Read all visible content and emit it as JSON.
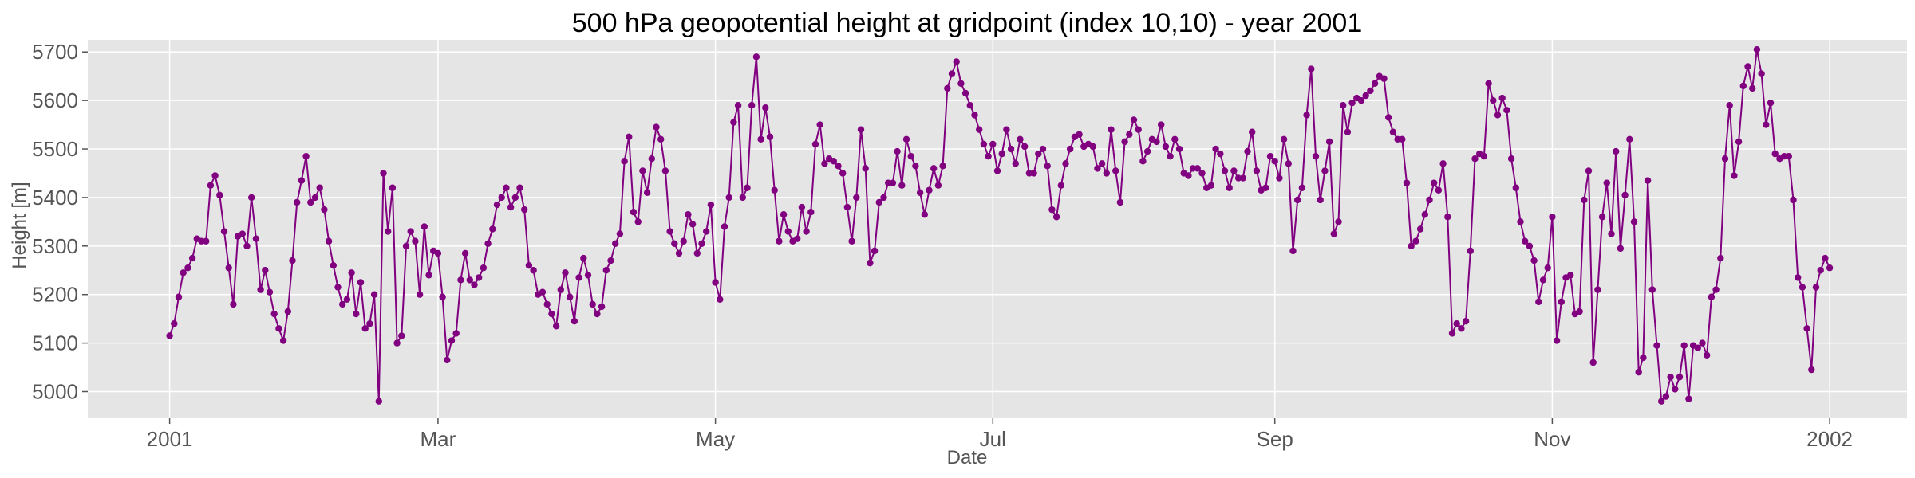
{
  "chart_data": {
    "type": "line",
    "title": "500 hPa geopotential height at gridpoint (index 10,10) - year 2001",
    "xlabel": "Date",
    "ylabel": "Height [m]",
    "x_tick_labels": [
      "2001",
      "Mar",
      "May",
      "Jul",
      "Sep",
      "Nov",
      "2002"
    ],
    "x_ticks": [
      "2001-01-01",
      "2001-03-01",
      "2001-05-01",
      "2001-07-01",
      "2001-09-01",
      "2001-11-01",
      "2002-01-01"
    ],
    "y_ticks": [
      5000,
      5100,
      5200,
      5300,
      5400,
      5500,
      5600,
      5700
    ],
    "xlim": [
      "2000-12-14",
      "2002-01-18"
    ],
    "ylim": [
      4945,
      5725
    ],
    "grid": true,
    "legend": "none",
    "line_color": "#800080",
    "background_color": "#e5e5e5",
    "grid_color": "#ffffff",
    "series": [
      {
        "x_start": "2001-01-01",
        "x_step_days": 1,
        "values": [
          5115,
          5140,
          5195,
          5245,
          5255,
          5275,
          5315,
          5310,
          5310,
          5425,
          5445,
          5405,
          5330,
          5255,
          5180,
          5320,
          5325,
          5300,
          5400,
          5315,
          5210,
          5250,
          5205,
          5160,
          5130,
          5105,
          5165,
          5270,
          5390,
          5435,
          5485,
          5390,
          5400,
          5420,
          5375,
          5310,
          5260,
          5215,
          5180,
          5190,
          5245,
          5160,
          5225,
          5130,
          5140,
          5200,
          4980,
          5450,
          5330,
          5420,
          5100,
          5115,
          5300,
          5330,
          5310,
          5200,
          5340,
          5240,
          5290,
          5285,
          5195,
          5065,
          5105,
          5120,
          5230,
          5285,
          5230,
          5220,
          5235,
          5255,
          5305,
          5335,
          5385,
          5400,
          5420,
          5380,
          5400,
          5420,
          5375,
          5260,
          5250,
          5200,
          5205,
          5180,
          5160,
          5135,
          5210,
          5245,
          5195,
          5145,
          5235,
          5275,
          5240,
          5180,
          5160,
          5175,
          5250,
          5270,
          5305,
          5325,
          5475,
          5525,
          5370,
          5350,
          5455,
          5410,
          5480,
          5545,
          5520,
          5455,
          5330,
          5305,
          5285,
          5310,
          5365,
          5345,
          5285,
          5305,
          5330,
          5385,
          5225,
          5190,
          5340,
          5400,
          5555,
          5590,
          5400,
          5420,
          5590,
          5690,
          5520,
          5585,
          5525,
          5415,
          5310,
          5365,
          5330,
          5310,
          5315,
          5380,
          5330,
          5370,
          5510,
          5550,
          5470,
          5480,
          5475,
          5465,
          5450,
          5380,
          5310,
          5400,
          5540,
          5460,
          5265,
          5290,
          5390,
          5400,
          5430,
          5430,
          5495,
          5425,
          5520,
          5485,
          5465,
          5410,
          5365,
          5415,
          5460,
          5425,
          5465,
          5625,
          5655,
          5680,
          5635,
          5615,
          5590,
          5570,
          5540,
          5510,
          5485,
          5510,
          5455,
          5490,
          5540,
          5500,
          5470,
          5520,
          5505,
          5450,
          5450,
          5490,
          5500,
          5465,
          5375,
          5360,
          5425,
          5470,
          5500,
          5525,
          5530,
          5505,
          5510,
          5505,
          5460,
          5470,
          5450,
          5540,
          5455,
          5390,
          5515,
          5530,
          5560,
          5540,
          5475,
          5495,
          5520,
          5515,
          5550,
          5505,
          5485,
          5520,
          5500,
          5450,
          5445,
          5460,
          5460,
          5450,
          5420,
          5425,
          5500,
          5490,
          5455,
          5420,
          5455,
          5440,
          5440,
          5495,
          5535,
          5455,
          5415,
          5420,
          5485,
          5475,
          5440,
          5520,
          5470,
          5290,
          5395,
          5420,
          5570,
          5665,
          5485,
          5395,
          5455,
          5515,
          5325,
          5350,
          5590,
          5535,
          5595,
          5605,
          5600,
          5610,
          5620,
          5635,
          5650,
          5645,
          5565,
          5535,
          5520,
          5520,
          5430,
          5300,
          5310,
          5335,
          5365,
          5395,
          5430,
          5415,
          5470,
          5360,
          5120,
          5140,
          5130,
          5145,
          5290,
          5480,
          5490,
          5485,
          5635,
          5600,
          5570,
          5605,
          5580,
          5480,
          5420,
          5350,
          5310,
          5300,
          5270,
          5185,
          5230,
          5255,
          5360,
          5105,
          5185,
          5235,
          5240,
          5160,
          5165,
          5395,
          5455,
          5060,
          5210,
          5360,
          5430,
          5325,
          5495,
          5295,
          5405,
          5520,
          5350,
          5040,
          5070,
          5435,
          5210,
          5095,
          4980,
          4990,
          5030,
          5005,
          5030,
          5095,
          4985,
          5095,
          5090,
          5100,
          5075,
          5195,
          5210,
          5275,
          5480,
          5590,
          5445,
          5515,
          5630,
          5670,
          5625,
          5705,
          5655,
          5550,
          5595,
          5490,
          5480,
          5485,
          5485,
          5395,
          5235,
          5215,
          5130,
          5045,
          5215,
          5250,
          5275,
          5255
        ]
      }
    ]
  }
}
